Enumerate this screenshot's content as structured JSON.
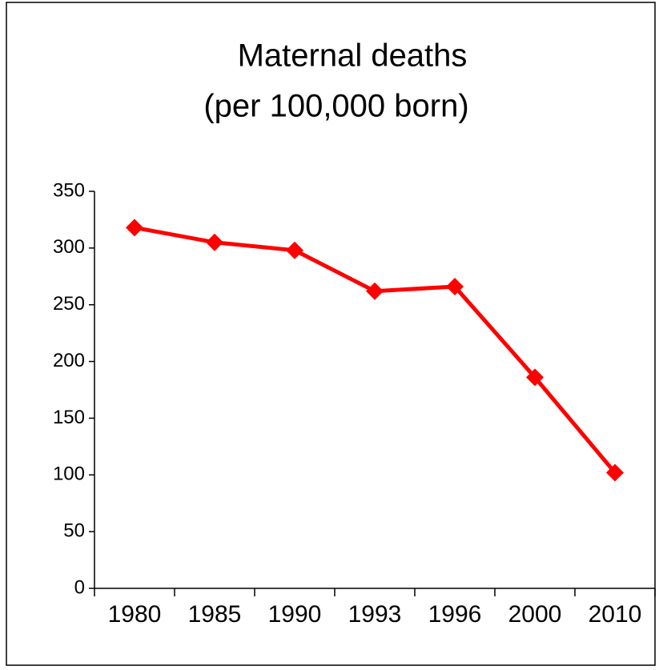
{
  "chart_data": {
    "type": "line",
    "title": [
      "Maternal deaths",
      "(per 100,000 born)"
    ],
    "categories": [
      "1980",
      "1985",
      "1990",
      "1993",
      "1996",
      "2000",
      "2010"
    ],
    "series": [
      {
        "name": "Maternal deaths",
        "color": "#ff0000",
        "values": [
          318,
          305,
          298,
          262,
          266,
          186,
          102
        ]
      }
    ],
    "ylim": [
      0,
      350
    ],
    "yticks": [
      0,
      50,
      100,
      150,
      200,
      250,
      300,
      350
    ],
    "grid": false,
    "legend": false
  }
}
